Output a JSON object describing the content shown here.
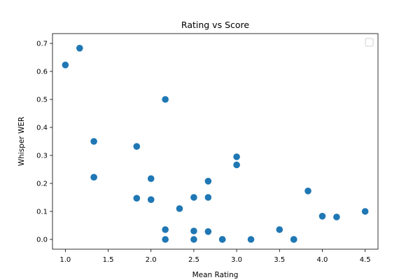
{
  "chart_data": {
    "type": "scatter",
    "title": "Rating vs Score",
    "xlabel": "Mean Rating",
    "ylabel": "Whisper WER",
    "xlim": [
      0.85,
      4.65
    ],
    "ylim": [
      -0.035,
      0.735
    ],
    "xticks": [
      1.0,
      1.5,
      2.0,
      2.5,
      3.0,
      3.5,
      4.0,
      4.5
    ],
    "xtick_labels": [
      "1.0",
      "1.5",
      "2.0",
      "2.5",
      "3.0",
      "3.5",
      "4.0",
      "4.5"
    ],
    "yticks": [
      0.0,
      0.1,
      0.2,
      0.3,
      0.4,
      0.5,
      0.6,
      0.7
    ],
    "ytick_labels": [
      "0.0",
      "0.1",
      "0.2",
      "0.3",
      "0.4",
      "0.5",
      "0.6",
      "0.7"
    ],
    "grid": false,
    "legend": "upper right, empty",
    "marker_color": "#1f77b4",
    "series": [
      {
        "points": [
          {
            "x": 1.0,
            "y": 0.623
          },
          {
            "x": 1.167,
            "y": 0.683
          },
          {
            "x": 1.333,
            "y": 0.35
          },
          {
            "x": 1.333,
            "y": 0.222
          },
          {
            "x": 1.833,
            "y": 0.332
          },
          {
            "x": 1.833,
            "y": 0.147
          },
          {
            "x": 2.0,
            "y": 0.217
          },
          {
            "x": 2.0,
            "y": 0.142
          },
          {
            "x": 2.167,
            "y": 0.5
          },
          {
            "x": 2.167,
            "y": 0.035
          },
          {
            "x": 2.167,
            "y": 0.0
          },
          {
            "x": 2.333,
            "y": 0.11
          },
          {
            "x": 2.5,
            "y": 0.15
          },
          {
            "x": 2.5,
            "y": 0.03
          },
          {
            "x": 2.5,
            "y": 0.0
          },
          {
            "x": 2.667,
            "y": 0.208
          },
          {
            "x": 2.667,
            "y": 0.15
          },
          {
            "x": 2.667,
            "y": 0.028
          },
          {
            "x": 2.833,
            "y": 0.0
          },
          {
            "x": 2.833,
            "y": 0.0
          },
          {
            "x": 3.0,
            "y": 0.295
          },
          {
            "x": 3.0,
            "y": 0.266
          },
          {
            "x": 3.167,
            "y": 0.0
          },
          {
            "x": 3.5,
            "y": 0.035
          },
          {
            "x": 3.667,
            "y": 0.0
          },
          {
            "x": 3.667,
            "y": 0.0
          },
          {
            "x": 3.833,
            "y": 0.173
          },
          {
            "x": 4.0,
            "y": 0.083
          },
          {
            "x": 4.167,
            "y": 0.08
          },
          {
            "x": 4.5,
            "y": 0.1
          }
        ]
      }
    ]
  }
}
